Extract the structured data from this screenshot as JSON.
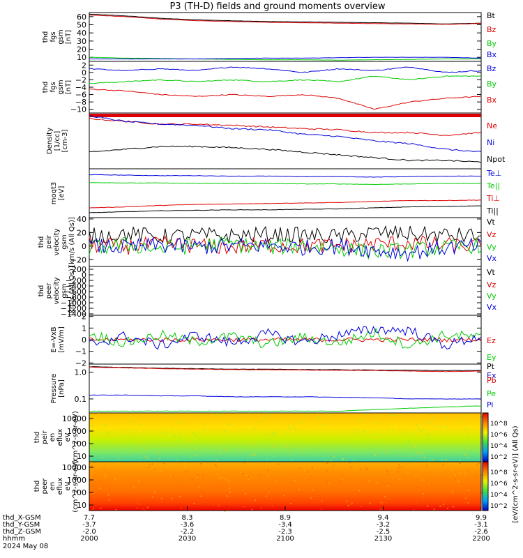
{
  "title": "P3 (TH-D) fields and ground moments overview",
  "colors": {
    "black": "#000000",
    "red": "#dd0000",
    "green": "#00cc00",
    "blue": "#0000dd"
  },
  "x_axis": {
    "rows": [
      {
        "label": "thd_X-GSM",
        "values": [
          "7.7",
          "8.3",
          "8.9",
          "9.4",
          "9.9"
        ]
      },
      {
        "label": "thd_Y-GSM",
        "values": [
          "-3.7",
          "-3.6",
          "-3.4",
          "-3.2",
          "-3.1"
        ]
      },
      {
        "label": "thd_Z-GSM",
        "values": [
          "-2.0",
          "-2.2",
          "-2.3",
          "-2.5",
          "-2.6"
        ]
      },
      {
        "label": "hhmm",
        "values": [
          "2000",
          "2030",
          "2100",
          "2130",
          "2200"
        ]
      }
    ],
    "date": "2024 May 08"
  },
  "colorbar_label": "[eV/(cm^2-s-sr-eV)] (All Qs)",
  "chart_data": [
    {
      "type": "line",
      "ylabel": [
        "thd",
        "fgs",
        "gsm",
        "[nT]"
      ],
      "ylim": [
        5,
        65
      ],
      "yticks": [
        "60",
        "50",
        "40",
        "30",
        "20",
        "10"
      ],
      "legend": [
        "Bt",
        "Bz",
        "By",
        "Bx"
      ],
      "series": [
        {
          "name": "Bt",
          "color": "black",
          "values": [
            63,
            61,
            58,
            56,
            55,
            54,
            53.5,
            53,
            52.5,
            52,
            51,
            52
          ]
        },
        {
          "name": "Bz",
          "color": "red",
          "values": [
            62,
            60,
            57,
            55,
            54,
            53,
            52.5,
            52,
            51.5,
            51,
            50.5,
            51.5
          ]
        },
        {
          "name": "By",
          "color": "green",
          "values": [
            10,
            9,
            8.5,
            8,
            7.5,
            7,
            7,
            6.5,
            7,
            7.5,
            8,
            8
          ]
        },
        {
          "name": "Bx",
          "color": "blue",
          "values": [
            8,
            8,
            8,
            8,
            8.5,
            9,
            9,
            9.5,
            10,
            10,
            10,
            9
          ]
        }
      ]
    },
    {
      "type": "line",
      "ylabel": [
        "thd",
        "fgs",
        "gsm",
        "[nT]"
      ],
      "ylim": [
        -11,
        3
      ],
      "yticks": [
        "2",
        "0",
        "-2",
        "-4",
        "-6",
        "-8",
        "-10"
      ],
      "legend": [
        "Bz",
        "By",
        "Bx"
      ],
      "series": [
        {
          "name": "Bz",
          "color": "blue",
          "values": [
            1,
            0.5,
            1,
            0.5,
            1.5,
            1,
            0,
            1,
            0.5,
            1.5,
            0,
            0.5
          ]
        },
        {
          "name": "By",
          "color": "green",
          "values": [
            -3,
            -2.5,
            -2,
            -2.5,
            -2,
            -2.5,
            -2,
            -2.5,
            -1,
            -2,
            -1,
            -1
          ]
        },
        {
          "name": "Bx",
          "color": "red",
          "values": [
            -4.5,
            -5,
            -6,
            -6.5,
            -6,
            -6.5,
            -6,
            -7,
            -10,
            -8,
            -7,
            -6.5
          ]
        }
      ]
    },
    {
      "type": "line",
      "ylabel": [
        "Density",
        "[1/cc]",
        "[cm-3]"
      ],
      "ylim": [
        0,
        1
      ],
      "yticks": [],
      "legend": [
        "Ne",
        "Ni",
        "Npot"
      ],
      "series": [
        {
          "name": "Ne",
          "color": "red",
          "values": [
            0.9,
            0.85,
            0.8,
            0.8,
            0.78,
            0.75,
            0.72,
            0.7,
            0.65,
            0.65,
            0.6,
            0.65
          ]
        },
        {
          "name": "Ni",
          "color": "blue",
          "values": [
            0.95,
            0.85,
            0.8,
            0.78,
            0.72,
            0.7,
            0.62,
            0.58,
            0.5,
            0.45,
            0.35,
            0.3
          ]
        },
        {
          "name": "Npot",
          "color": "black",
          "values": [
            0.3,
            0.35,
            0.4,
            0.4,
            0.38,
            0.35,
            0.3,
            0.25,
            0.2,
            0.15,
            0.15,
            0.12
          ]
        }
      ]
    },
    {
      "type": "line",
      "ylabel": [
        "moqt3",
        "[eV]"
      ],
      "ylim": [
        0,
        1
      ],
      "yticks": [
        "1000"
      ],
      "legend": [
        "Te⊥",
        "Te||",
        "Ti⊥",
        "Ti||"
      ],
      "series": [
        {
          "name": "Te⊥",
          "color": "blue",
          "values": [
            0.88,
            0.87,
            0.86,
            0.86,
            0.85,
            0.85,
            0.84,
            0.84,
            0.83,
            0.84,
            0.85,
            0.85
          ]
        },
        {
          "name": "Te||",
          "color": "green",
          "values": [
            0.72,
            0.71,
            0.71,
            0.7,
            0.7,
            0.7,
            0.69,
            0.69,
            0.68,
            0.69,
            0.7,
            0.7
          ]
        },
        {
          "name": "Ti⊥",
          "color": "red",
          "values": [
            0.2,
            0.22,
            0.25,
            0.27,
            0.28,
            0.29,
            0.3,
            0.31,
            0.33,
            0.35,
            0.35,
            0.36
          ]
        },
        {
          "name": "Ti||",
          "color": "black",
          "values": [
            0.1,
            0.12,
            0.14,
            0.15,
            0.16,
            0.16,
            0.17,
            0.18,
            0.2,
            0.22,
            0.23,
            0.24
          ]
        }
      ]
    },
    {
      "type": "line",
      "ylabel": [
        "thd",
        "peir",
        "velocity",
        "gsm",
        "[km/s (All Qs)]"
      ],
      "ylim": [
        -30,
        42
      ],
      "yticks": [
        "40",
        "20",
        "0",
        "-20"
      ],
      "legend": [
        "Vt",
        "Vz",
        "Vy",
        "Vx"
      ],
      "series": [
        {
          "name": "Vt",
          "color": "black",
          "values": [
            15,
            18,
            14,
            16,
            15,
            17,
            16,
            14,
            20,
            18,
            16,
            15
          ]
        },
        {
          "name": "Vz",
          "color": "red",
          "values": [
            2,
            -1,
            3,
            1,
            -2,
            2,
            0,
            1,
            3,
            5,
            1,
            0
          ]
        },
        {
          "name": "Vy",
          "color": "green",
          "values": [
            -3,
            2,
            -4,
            1,
            3,
            -2,
            1,
            -3,
            -8,
            -6,
            -3,
            2
          ]
        },
        {
          "name": "Vx",
          "color": "blue",
          "values": [
            0,
            -2,
            1,
            -1,
            0,
            1,
            -2,
            0,
            -6,
            -10,
            -2,
            0
          ]
        }
      ]
    },
    {
      "type": "line",
      "ylabel": [
        "thd",
        "peer",
        "velocity",
        "gsm",
        "[km/s (All Qs)]"
      ],
      "ylim": [
        -1450,
        300
      ],
      "yticks": [
        "200",
        "0",
        "-200",
        "-400",
        "-600",
        "-800",
        "-1000",
        "-1200",
        "-1400"
      ],
      "legend": [
        "Vt",
        "Vz",
        "Vy",
        "Vx"
      ],
      "series": []
    },
    {
      "type": "line",
      "ylabel": [
        "E=-VxB",
        "[mV/m]"
      ],
      "ylim": [
        -2.1,
        2.1
      ],
      "yticks": [
        "2",
        "1",
        "0",
        "-1",
        "-2"
      ],
      "legend": [
        "Ez",
        "Ey",
        "Ex"
      ],
      "series": [
        {
          "name": "Ez",
          "color": "red",
          "values": [
            0,
            0,
            0,
            0,
            0,
            0,
            0,
            0,
            0,
            0,
            0,
            0
          ]
        },
        {
          "name": "Ey",
          "color": "green",
          "values": [
            0.5,
            -0.3,
            0.4,
            -0.2,
            0.3,
            -0.4,
            0.2,
            -0.3,
            0.6,
            -0.5,
            0.4,
            0.2
          ]
        },
        {
          "name": "Ex",
          "color": "blue",
          "values": [
            -0.4,
            0.3,
            -0.5,
            0.4,
            -0.3,
            0.5,
            -0.2,
            0.4,
            0.9,
            0.8,
            -0.5,
            0.3
          ]
        }
      ]
    },
    {
      "type": "line",
      "ylabel": [
        "Pressure",
        "[nPa]"
      ],
      "ylim": [
        0.03,
        2
      ],
      "yticks": [
        "1.0",
        "0.1"
      ],
      "legend": [
        "Pt",
        "Pb",
        "Pe",
        "Pi"
      ],
      "series": [
        {
          "name": "Pt",
          "color": "black",
          "values": [
            1.6,
            1.5,
            1.4,
            1.35,
            1.3,
            1.28,
            1.25,
            1.23,
            1.2,
            1.18,
            1.15,
            1.15
          ]
        },
        {
          "name": "Pb",
          "color": "red",
          "values": [
            1.55,
            1.45,
            1.35,
            1.3,
            1.25,
            1.23,
            1.2,
            1.18,
            1.15,
            1.1,
            1.05,
            1.1
          ]
        },
        {
          "name": "Pe",
          "color": "green",
          "values": [
            0.035,
            0.035,
            0.035,
            0.035,
            0.035,
            0.035,
            0.035,
            0.035,
            0.04,
            0.045,
            0.05,
            0.055
          ]
        },
        {
          "name": "Pi",
          "color": "blue",
          "values": [
            0.14,
            0.14,
            0.13,
            0.13,
            0.12,
            0.12,
            0.12,
            0.115,
            0.11,
            0.1,
            0.1,
            0.1
          ]
        }
      ]
    },
    {
      "type": "heatmap",
      "ylabel": [
        "thd",
        "peir",
        "en",
        "eflux",
        "eV",
        "(cm^2-s-sr-eV)"
      ],
      "yticks": [
        "10000",
        "1000",
        "100",
        "10"
      ],
      "colorbar_ticks": [
        "10^8",
        "10^6",
        "10^4",
        "10^2"
      ]
    },
    {
      "type": "heatmap",
      "ylabel": [
        "thd",
        "peer",
        "en",
        "eflux",
        "eV",
        "(cm^2-s-sr-eV)"
      ],
      "yticks": [
        "10000",
        "1000",
        "100",
        "10"
      ],
      "colorbar_ticks": [
        "10^8",
        "10^6",
        "10^4",
        "10^2"
      ]
    }
  ]
}
